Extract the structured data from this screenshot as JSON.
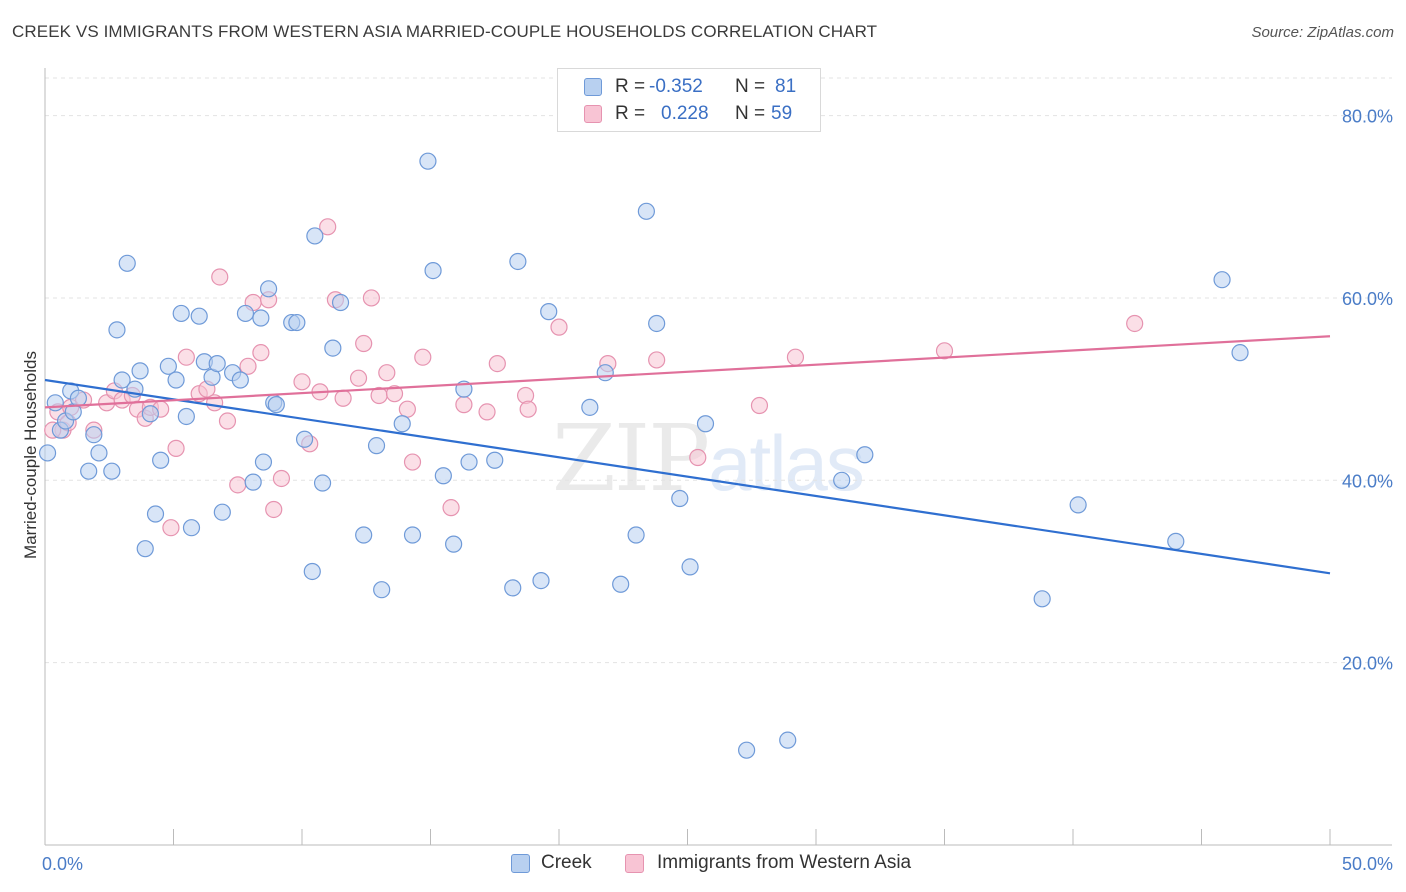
{
  "header": {
    "title": "CREEK VS IMMIGRANTS FROM WESTERN ASIA MARRIED-COUPLE HOUSEHOLDS CORRELATION CHART",
    "source": "Source: ZipAtlas.com"
  },
  "legend": {
    "r_label": "R =",
    "n_label": "N =",
    "creek": {
      "r": "-0.352",
      "n": "81"
    },
    "immigrants": {
      "r": "0.228",
      "n": "59"
    }
  },
  "bottom_legend": {
    "creek_label": "Creek",
    "immigrants_label": "Immigrants from Western Asia"
  },
  "watermark": {
    "zip": "ZIP",
    "atlas": "atlas"
  },
  "colors": {
    "creek_fill": "#b8d0f0",
    "creek_stroke": "#6f9ad8",
    "creek_line": "#2f6fd0",
    "imm_fill": "#f8c4d4",
    "imm_stroke": "#e693b0",
    "imm_line": "#e0709a",
    "grid": "#e3e3e3",
    "tick_text": "#4a7cc7"
  },
  "chart_data": {
    "type": "scatter",
    "title": "CREEK VS IMMIGRANTS FROM WESTERN ASIA MARRIED-COUPLE HOUSEHOLDS CORRELATION CHART",
    "xlabel": "",
    "ylabel": "Married-couple Households",
    "xlim": [
      0,
      50
    ],
    "ylim": [
      0,
      85
    ],
    "x_tick_labels": [
      "0.0%",
      "50.0%"
    ],
    "y_ticks": [
      20,
      40,
      60,
      80
    ],
    "y_tick_labels": [
      "20.0%",
      "40.0%",
      "60.0%",
      "80.0%"
    ],
    "grid": true,
    "legend_placement": "top-center",
    "series": [
      {
        "name": "Creek",
        "trend": {
          "x": [
            0,
            50
          ],
          "y": [
            51.0,
            29.8
          ]
        },
        "points": [
          [
            0.1,
            43.0
          ],
          [
            0.4,
            48.5
          ],
          [
            0.6,
            45.5
          ],
          [
            0.8,
            46.5
          ],
          [
            1.0,
            49.8
          ],
          [
            1.1,
            47.5
          ],
          [
            1.3,
            49.0
          ],
          [
            1.7,
            41.0
          ],
          [
            1.9,
            45.0
          ],
          [
            2.1,
            43.0
          ],
          [
            2.6,
            41.0
          ],
          [
            2.8,
            56.5
          ],
          [
            3.0,
            51.0
          ],
          [
            3.2,
            63.8
          ],
          [
            3.5,
            50.0
          ],
          [
            3.7,
            52.0
          ],
          [
            3.9,
            32.5
          ],
          [
            4.1,
            47.3
          ],
          [
            4.3,
            36.3
          ],
          [
            4.5,
            42.2
          ],
          [
            4.8,
            52.5
          ],
          [
            5.1,
            51.0
          ],
          [
            5.3,
            58.3
          ],
          [
            5.5,
            47.0
          ],
          [
            5.7,
            34.8
          ],
          [
            6.0,
            58.0
          ],
          [
            6.2,
            53.0
          ],
          [
            6.5,
            51.3
          ],
          [
            6.7,
            52.8
          ],
          [
            6.9,
            36.5
          ],
          [
            7.3,
            51.8
          ],
          [
            7.6,
            51.0
          ],
          [
            7.8,
            58.3
          ],
          [
            8.1,
            39.8
          ],
          [
            8.4,
            57.8
          ],
          [
            8.5,
            42.0
          ],
          [
            8.7,
            61.0
          ],
          [
            8.9,
            48.5
          ],
          [
            9.0,
            48.3
          ],
          [
            9.6,
            57.3
          ],
          [
            9.8,
            57.3
          ],
          [
            10.1,
            44.5
          ],
          [
            10.4,
            30.0
          ],
          [
            10.5,
            66.8
          ],
          [
            10.8,
            39.7
          ],
          [
            11.2,
            54.5
          ],
          [
            11.5,
            59.5
          ],
          [
            12.4,
            34.0
          ],
          [
            12.9,
            43.8
          ],
          [
            13.1,
            28.0
          ],
          [
            13.9,
            46.2
          ],
          [
            14.3,
            34.0
          ],
          [
            14.9,
            75.0
          ],
          [
            15.1,
            63.0
          ],
          [
            15.5,
            40.5
          ],
          [
            15.9,
            33.0
          ],
          [
            16.3,
            50.0
          ],
          [
            16.5,
            42.0
          ],
          [
            17.5,
            42.2
          ],
          [
            18.2,
            28.2
          ],
          [
            18.4,
            64.0
          ],
          [
            19.3,
            29.0
          ],
          [
            19.6,
            58.5
          ],
          [
            21.2,
            48.0
          ],
          [
            21.8,
            51.8
          ],
          [
            22.4,
            28.6
          ],
          [
            23.0,
            34.0
          ],
          [
            23.4,
            69.5
          ],
          [
            23.8,
            57.2
          ],
          [
            24.7,
            38.0
          ],
          [
            25.1,
            30.5
          ],
          [
            25.7,
            46.2
          ],
          [
            27.3,
            10.4
          ],
          [
            28.9,
            11.5
          ],
          [
            31.0,
            40.0
          ],
          [
            31.9,
            42.8
          ],
          [
            38.8,
            27.0
          ],
          [
            40.2,
            37.3
          ],
          [
            44.0,
            33.3
          ],
          [
            45.8,
            62.0
          ],
          [
            46.5,
            54.0
          ]
        ]
      },
      {
        "name": "Immigrants from Western Asia",
        "trend": {
          "x": [
            0,
            50
          ],
          "y": [
            48.0,
            55.8
          ]
        },
        "points": [
          [
            0.5,
            47.5
          ],
          [
            0.7,
            45.5
          ],
          [
            1.0,
            48.0
          ],
          [
            1.5,
            48.8
          ],
          [
            1.9,
            45.5
          ],
          [
            2.4,
            48.5
          ],
          [
            2.7,
            49.8
          ],
          [
            3.0,
            48.8
          ],
          [
            3.4,
            49.3
          ],
          [
            3.6,
            47.8
          ],
          [
            3.9,
            46.8
          ],
          [
            4.1,
            48.0
          ],
          [
            4.5,
            47.8
          ],
          [
            4.9,
            34.8
          ],
          [
            5.1,
            43.5
          ],
          [
            5.5,
            53.5
          ],
          [
            6.0,
            49.5
          ],
          [
            6.3,
            50.0
          ],
          [
            6.6,
            48.5
          ],
          [
            6.8,
            62.3
          ],
          [
            7.1,
            46.5
          ],
          [
            7.5,
            39.5
          ],
          [
            7.9,
            52.5
          ],
          [
            8.1,
            59.5
          ],
          [
            8.4,
            54.0
          ],
          [
            8.7,
            59.8
          ],
          [
            8.9,
            36.8
          ],
          [
            9.2,
            40.2
          ],
          [
            10.0,
            50.8
          ],
          [
            10.3,
            44.0
          ],
          [
            10.7,
            49.7
          ],
          [
            11.0,
            67.8
          ],
          [
            11.3,
            59.8
          ],
          [
            11.6,
            49.0
          ],
          [
            12.2,
            51.2
          ],
          [
            12.4,
            55.0
          ],
          [
            12.7,
            60.0
          ],
          [
            13.0,
            49.3
          ],
          [
            13.3,
            51.8
          ],
          [
            13.6,
            49.5
          ],
          [
            14.1,
            47.8
          ],
          [
            14.3,
            42.0
          ],
          [
            14.7,
            53.5
          ],
          [
            15.8,
            37.0
          ],
          [
            16.3,
            48.3
          ],
          [
            17.2,
            47.5
          ],
          [
            17.6,
            52.8
          ],
          [
            18.7,
            49.3
          ],
          [
            18.8,
            47.8
          ],
          [
            20.0,
            56.8
          ],
          [
            21.9,
            52.8
          ],
          [
            23.8,
            53.2
          ],
          [
            25.4,
            42.5
          ],
          [
            27.8,
            48.2
          ],
          [
            29.2,
            53.5
          ],
          [
            35.0,
            54.2
          ],
          [
            42.4,
            57.2
          ],
          [
            0.3,
            45.5
          ],
          [
            0.9,
            46.3
          ]
        ]
      }
    ]
  }
}
